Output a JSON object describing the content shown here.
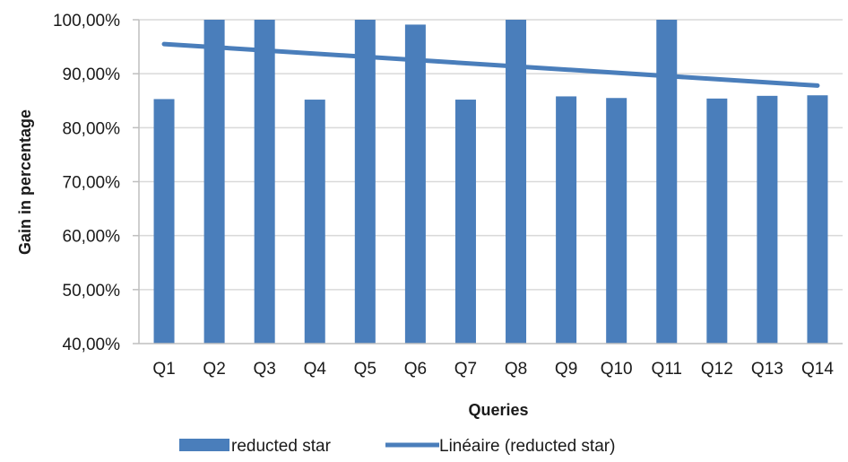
{
  "chart_data": {
    "type": "bar",
    "categories": [
      "Q1",
      "Q2",
      "Q3",
      "Q4",
      "Q5",
      "Q6",
      "Q7",
      "Q8",
      "Q9",
      "Q10",
      "Q11",
      "Q12",
      "Q13",
      "Q14"
    ],
    "series": [
      {
        "name": "reducted star",
        "values": [
          85.3,
          100.0,
          100.0,
          85.2,
          100.0,
          99.1,
          85.2,
          100.0,
          85.8,
          85.5,
          100.0,
          85.4,
          85.9,
          86.0
        ]
      }
    ],
    "trendline": {
      "name": "Linéaire (reducted star)",
      "start": 95.5,
      "end": 87.8
    },
    "xlabel": "Queries",
    "ylabel": "Gain in percentage",
    "ylim": [
      40,
      100
    ],
    "yticks": [
      "40,00%",
      "50,00%",
      "60,00%",
      "70,00%",
      "80,00%",
      "90,00%",
      "100,00%"
    ],
    "grid": true,
    "legend_position": "bottom",
    "colors": {
      "bar": "#4a7ebb",
      "trend": "#4a7ebb",
      "grid": "#d9d9d9",
      "axis": "#bfbfbf"
    }
  }
}
